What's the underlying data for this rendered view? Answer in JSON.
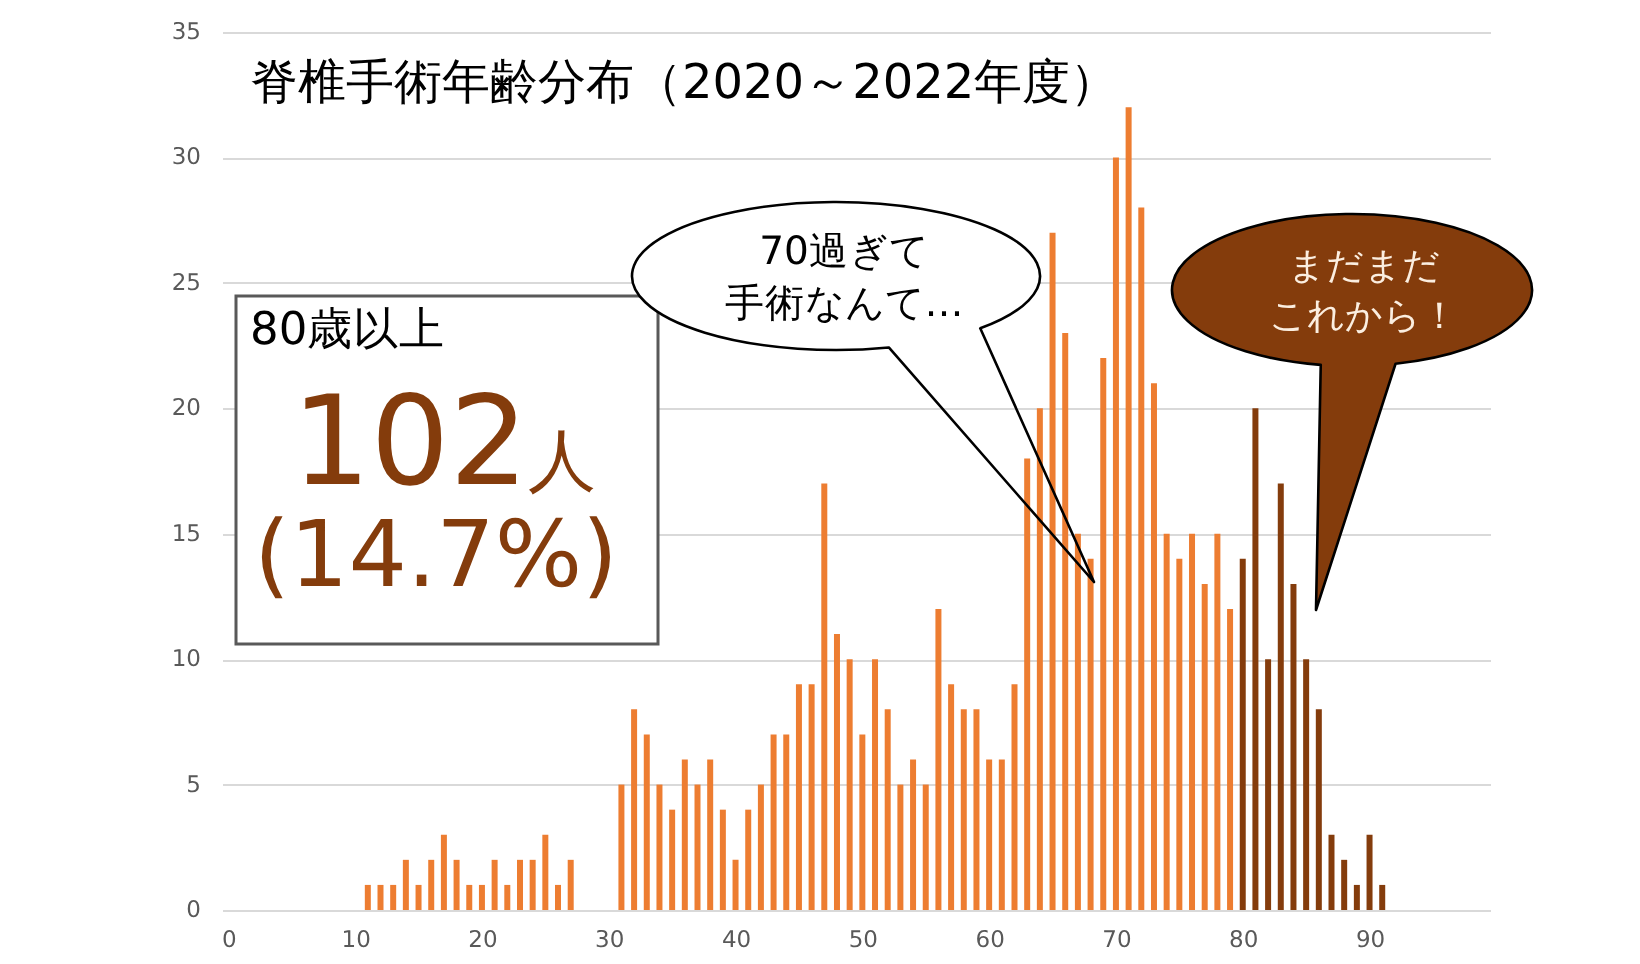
{
  "chart_data": {
    "type": "bar",
    "title": "脊椎手術年齢分布（2020～2022年度）",
    "x": [
      11,
      12,
      13,
      14,
      15,
      16,
      17,
      18,
      19,
      20,
      21,
      22,
      23,
      24,
      25,
      26,
      27,
      31,
      32,
      33,
      34,
      35,
      36,
      37,
      38,
      39,
      40,
      41,
      42,
      43,
      44,
      45,
      46,
      47,
      48,
      49,
      50,
      51,
      52,
      53,
      54,
      55,
      56,
      57,
      58,
      59,
      60,
      61,
      62,
      63,
      64,
      65,
      66,
      67,
      68,
      69,
      70,
      71,
      72,
      73,
      74,
      75,
      76,
      77,
      78,
      79,
      80,
      81,
      82,
      83,
      84,
      85,
      86,
      87,
      88,
      89,
      90,
      91
    ],
    "values": [
      1,
      1,
      1,
      2,
      1,
      2,
      3,
      2,
      1,
      1,
      2,
      1,
      2,
      2,
      3,
      1,
      2,
      5,
      8,
      7,
      5,
      4,
      6,
      5,
      6,
      4,
      2,
      4,
      5,
      7,
      7,
      9,
      9,
      17,
      11,
      10,
      7,
      10,
      8,
      5,
      6,
      5,
      12,
      9,
      8,
      8,
      6,
      6,
      9,
      18,
      20,
      27,
      23,
      15,
      14,
      22,
      30,
      32,
      28,
      21,
      15,
      14,
      15,
      13,
      15,
      12,
      14,
      20,
      10,
      17,
      13,
      10,
      8,
      3,
      2,
      1,
      3,
      1
    ],
    "colors": [
      "#ed7d31",
      "#ed7d31",
      "#ed7d31",
      "#ed7d31",
      "#ed7d31",
      "#ed7d31",
      "#ed7d31",
      "#ed7d31",
      "#ed7d31",
      "#ed7d31",
      "#ed7d31",
      "#ed7d31",
      "#ed7d31",
      "#ed7d31",
      "#ed7d31",
      "#ed7d31",
      "#ed7d31",
      "#ed7d31",
      "#ed7d31",
      "#ed7d31",
      "#ed7d31",
      "#ed7d31",
      "#ed7d31",
      "#ed7d31",
      "#ed7d31",
      "#ed7d31",
      "#ed7d31",
      "#ed7d31",
      "#ed7d31",
      "#ed7d31",
      "#ed7d31",
      "#ed7d31",
      "#ed7d31",
      "#ed7d31",
      "#ed7d31",
      "#ed7d31",
      "#ed7d31",
      "#ed7d31",
      "#ed7d31",
      "#ed7d31",
      "#ed7d31",
      "#ed7d31",
      "#ed7d31",
      "#ed7d31",
      "#ed7d31",
      "#ed7d31",
      "#ed7d31",
      "#ed7d31",
      "#ed7d31",
      "#ed7d31",
      "#ed7d31",
      "#ed7d31",
      "#ed7d31",
      "#ed7d31",
      "#ed7d31",
      "#ed7d31",
      "#ed7d31",
      "#ed7d31",
      "#ed7d31",
      "#ed7d31",
      "#ed7d31",
      "#ed7d31",
      "#ed7d31",
      "#ed7d31",
      "#ed7d31",
      "#ed7d31",
      "#843c0c",
      "#843c0c",
      "#843c0c",
      "#843c0c",
      "#843c0c",
      "#843c0c",
      "#843c0c",
      "#843c0c",
      "#843c0c",
      "#843c0c",
      "#843c0c",
      "#843c0c"
    ],
    "xlim": [
      -0.5,
      99.5
    ],
    "xticks": [
      0,
      10,
      20,
      30,
      40,
      50,
      60,
      70,
      80,
      90
    ],
    "ylim": [
      0,
      35
    ],
    "yticks": [
      0,
      5,
      10,
      15,
      20,
      25,
      30,
      35
    ],
    "grid": "y",
    "annotations": [
      "80歳以上",
      "102人",
      "(14.7%)",
      "70過ぎて手術なんて…",
      "まだまだこれから！"
    ]
  }
}
